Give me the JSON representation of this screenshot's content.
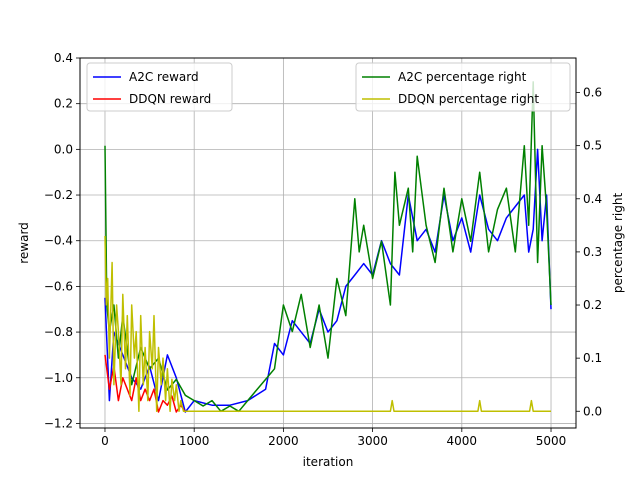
{
  "chart_data": {
    "type": "line",
    "title": "",
    "xlabel": "iteration",
    "ylabel": "reward",
    "y2label": "percentage right",
    "xlim": [
      -280,
      5280
    ],
    "ylim": [
      -1.22,
      0.4
    ],
    "y2lim": [
      -0.0315,
      0.665
    ],
    "grid": true,
    "x_ticks": [
      0,
      1000,
      2000,
      3000,
      4000,
      5000
    ],
    "x_tick_labels": [
      "0",
      "1000",
      "2000",
      "3000",
      "4000",
      "5000"
    ],
    "y_ticks": [
      -1.2,
      -1.0,
      -0.8,
      -0.6,
      -0.4,
      -0.2,
      0.0,
      0.2,
      0.4
    ],
    "y_tick_labels": [
      "−1.2",
      "−1.0",
      "−0.8",
      "−0.6",
      "−0.4",
      "−0.2",
      "0.0",
      "0.2",
      "0.4"
    ],
    "y2_ticks": [
      0.0,
      0.1,
      0.2,
      0.3,
      0.4,
      0.5,
      0.6
    ],
    "y2_tick_labels": [
      "0.0",
      "0.1",
      "0.2",
      "0.3",
      "0.4",
      "0.5",
      "0.6"
    ],
    "legend_left_placement": "upper-left",
    "legend_right_placement": "upper-right",
    "series": [
      {
        "name": "A2C reward",
        "axis": "left",
        "color": "#0000ff",
        "x": [
          0,
          50,
          100,
          200,
          300,
          400,
          500,
          600,
          700,
          800,
          900,
          1000,
          1200,
          1400,
          1600,
          1800,
          1900,
          2000,
          2100,
          2200,
          2300,
          2400,
          2500,
          2600,
          2700,
          2800,
          2900,
          3000,
          3100,
          3200,
          3300,
          3400,
          3500,
          3600,
          3700,
          3800,
          3900,
          4000,
          4100,
          4200,
          4300,
          4400,
          4500,
          4600,
          4700,
          4750,
          4800,
          4850,
          4900,
          4950,
          5000
        ],
        "y": [
          -0.65,
          -1.1,
          -0.8,
          -0.9,
          -1.0,
          -1.05,
          -0.95,
          -1.1,
          -0.9,
          -1.0,
          -1.15,
          -1.1,
          -1.12,
          -1.12,
          -1.1,
          -1.05,
          -0.85,
          -0.9,
          -0.75,
          -0.8,
          -0.85,
          -0.7,
          -0.8,
          -0.75,
          -0.6,
          -0.55,
          -0.5,
          -0.55,
          -0.4,
          -0.5,
          -0.55,
          -0.2,
          -0.4,
          -0.35,
          -0.45,
          -0.2,
          -0.4,
          -0.3,
          -0.45,
          -0.2,
          -0.35,
          -0.4,
          -0.3,
          -0.25,
          -0.2,
          -0.45,
          -0.35,
          0.0,
          -0.4,
          -0.2,
          -0.7
        ]
      },
      {
        "name": "DDQN reward",
        "axis": "left",
        "color": "#ff0000",
        "x": [
          0,
          50,
          100,
          150,
          200,
          250,
          300,
          350,
          400,
          450,
          500,
          550,
          600,
          650,
          700,
          750,
          800,
          850,
          900
        ],
        "y": [
          -0.9,
          -1.05,
          -0.95,
          -1.1,
          -1.0,
          -1.05,
          -1.1,
          -1.0,
          -1.1,
          -1.05,
          -1.1,
          -1.05,
          -1.15,
          -1.1,
          -1.12,
          -1.08,
          -1.15,
          -1.12,
          -1.15
        ]
      },
      {
        "name": "A2C percentage right",
        "axis": "right",
        "color": "#008000",
        "x": [
          0,
          20,
          50,
          100,
          150,
          200,
          300,
          400,
          500,
          600,
          700,
          800,
          900,
          1000,
          1100,
          1200,
          1300,
          1400,
          1500,
          1600,
          1700,
          1800,
          1900,
          2000,
          2100,
          2200,
          2300,
          2400,
          2500,
          2600,
          2700,
          2800,
          2850,
          2900,
          3000,
          3100,
          3200,
          3250,
          3300,
          3400,
          3450,
          3500,
          3600,
          3700,
          3800,
          3900,
          4000,
          4100,
          4200,
          4300,
          4400,
          4500,
          4600,
          4700,
          4750,
          4800,
          4850,
          4900,
          4950,
          5000
        ],
        "y": [
          0.5,
          0.2,
          0.15,
          0.2,
          0.1,
          0.18,
          0.05,
          0.12,
          0.08,
          0.1,
          0.04,
          0.06,
          0.03,
          0.02,
          0.01,
          0.02,
          0.0,
          0.01,
          0.0,
          0.02,
          0.04,
          0.06,
          0.08,
          0.2,
          0.15,
          0.22,
          0.12,
          0.2,
          0.1,
          0.25,
          0.18,
          0.4,
          0.3,
          0.35,
          0.25,
          0.32,
          0.2,
          0.45,
          0.35,
          0.42,
          0.3,
          0.48,
          0.35,
          0.28,
          0.42,
          0.3,
          0.4,
          0.32,
          0.45,
          0.3,
          0.38,
          0.42,
          0.3,
          0.5,
          0.35,
          0.62,
          0.28,
          0.5,
          0.38,
          0.2
        ]
      },
      {
        "name": "DDQN percentage right",
        "axis": "right",
        "color": "#bfbf00",
        "x": [
          0,
          15,
          30,
          50,
          80,
          100,
          130,
          150,
          180,
          200,
          230,
          250,
          280,
          300,
          330,
          350,
          380,
          400,
          430,
          450,
          480,
          500,
          530,
          550,
          580,
          600,
          630,
          650,
          680,
          700,
          730,
          750,
          780,
          800,
          830,
          850,
          880,
          900,
          1000,
          3200,
          3220,
          3240,
          4180,
          4200,
          4220,
          4760,
          4780,
          4800,
          5000
        ],
        "y": [
          0.33,
          0.2,
          0.25,
          0.1,
          0.28,
          0.05,
          0.2,
          0.15,
          0.05,
          0.22,
          0.08,
          0.18,
          0.03,
          0.2,
          0.1,
          0.15,
          0.0,
          0.18,
          0.05,
          0.12,
          0.02,
          0.15,
          0.08,
          0.18,
          0.0,
          0.12,
          0.05,
          0.1,
          0.02,
          0.08,
          0.0,
          0.06,
          0.02,
          0.05,
          0.0,
          0.02,
          0.0,
          0.0,
          0.0,
          0.0,
          0.02,
          0.0,
          0.0,
          0.02,
          0.0,
          0.0,
          0.02,
          0.0,
          0.0
        ]
      }
    ]
  }
}
